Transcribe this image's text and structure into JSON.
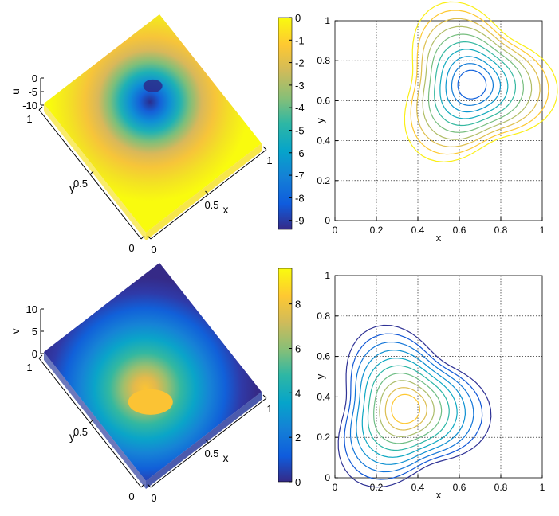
{
  "chart_data": [
    {
      "type": "surface",
      "panel": "top-left",
      "xlabel": "x",
      "ylabel": "y",
      "zlabel": "u",
      "x_ticks": [
        "0",
        "0.5",
        "1"
      ],
      "y_ticks": [
        "0",
        "0.5",
        "1"
      ],
      "z_ticks": [
        "0",
        "-5",
        "-10"
      ],
      "z_range": [
        -9.4,
        0
      ],
      "extremum": {
        "x": 0.66,
        "y": 0.68,
        "value": -9.4
      },
      "colormap": "parula"
    },
    {
      "type": "colorbar",
      "panel": "top-middle",
      "range": [
        -9.4,
        0
      ],
      "tick_values": [
        0,
        -1,
        -2,
        -3,
        -4,
        -5,
        -6,
        -7,
        -8,
        -9
      ],
      "tick_labels": [
        "0",
        "-1",
        "-2",
        "-3",
        "-4",
        "-5",
        "-6",
        "-7",
        "-8",
        "-9"
      ]
    },
    {
      "type": "contour",
      "panel": "top-right",
      "xlabel": "x",
      "ylabel": "y",
      "xlim": [
        0,
        1
      ],
      "ylim": [
        0,
        1
      ],
      "x_ticks": [
        "0",
        "0.2",
        "0.4",
        "0.6",
        "0.8",
        "1"
      ],
      "y_ticks": [
        "0",
        "0.2",
        "0.4",
        "0.6",
        "0.8",
        "1"
      ],
      "grid": true,
      "center": [
        0.66,
        0.68
      ],
      "levels": 10,
      "color_order": "outer-yellow-to-inner-blue"
    },
    {
      "type": "surface",
      "panel": "bottom-left",
      "xlabel": "x",
      "ylabel": "y",
      "zlabel": "v",
      "x_ticks": [
        "0",
        "0.5",
        "1"
      ],
      "y_ticks": [
        "0",
        "0.5",
        "1"
      ],
      "z_ticks": [
        "10",
        "5",
        "0"
      ],
      "z_range": [
        0,
        9.6
      ],
      "extremum": {
        "x": 0.34,
        "y": 0.34,
        "value": 9.6
      },
      "colormap": "parula"
    },
    {
      "type": "colorbar",
      "panel": "bottom-middle",
      "range": [
        0,
        9.6
      ],
      "tick_values": [
        0,
        2,
        4,
        6,
        8
      ],
      "tick_labels": [
        "0",
        "2",
        "4",
        "6",
        "8"
      ]
    },
    {
      "type": "contour",
      "panel": "bottom-right",
      "xlabel": "x",
      "ylabel": "y",
      "xlim": [
        0,
        1
      ],
      "ylim": [
        0,
        1
      ],
      "x_ticks": [
        "0",
        "0.2",
        "0.4",
        "0.6",
        "0.8",
        "1"
      ],
      "y_ticks": [
        "0",
        "0.2",
        "0.4",
        "0.6",
        "0.8",
        "1"
      ],
      "grid": true,
      "center": [
        0.34,
        0.34
      ],
      "levels": 10,
      "color_order": "outer-blue-to-inner-yellow"
    }
  ]
}
